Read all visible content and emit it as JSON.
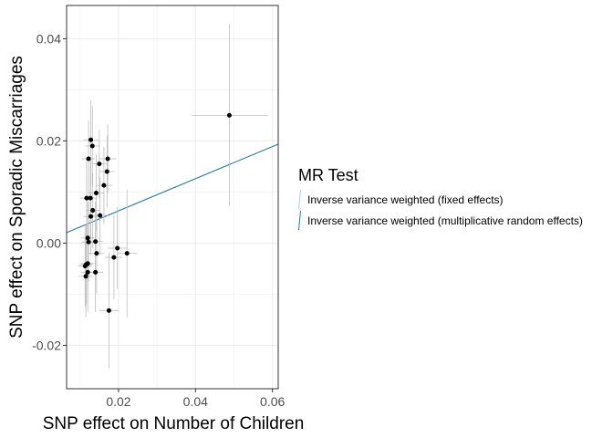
{
  "chart_data": {
    "type": "scatter",
    "title": "",
    "xlabel": "SNP effect on Number of Children",
    "ylabel": "SNP effect on Sporadic Miscarriages",
    "xlim": [
      0.0065,
      0.0615
    ],
    "ylim": [
      -0.0285,
      0.0465
    ],
    "x_ticks": [
      0.02,
      0.04,
      0.06
    ],
    "y_ticks": [
      -0.02,
      0.0,
      0.02,
      0.04
    ],
    "x_tick_labels": [
      "0.02",
      "0.04",
      "0.06"
    ],
    "y_tick_labels": [
      "-0.02",
      "0.00",
      "0.02",
      "0.04"
    ],
    "grid": true,
    "legend_position": "right",
    "legend": {
      "title": "MR Test",
      "entries": [
        {
          "label": "Inverse variance weighted (fixed effects)",
          "color": "#a6cee3"
        },
        {
          "label": "Inverse variance weighted (multiplicative random effects)",
          "color": "#1f78b4"
        }
      ]
    },
    "lines": [
      {
        "name": "Inverse variance weighted (fixed effects)",
        "intercept": 0,
        "slope": 0.315,
        "color": "#a6cee3"
      },
      {
        "name": "Inverse variance weighted (multiplicative random effects)",
        "intercept": 0,
        "slope": 0.315,
        "color": "#1f78b4"
      }
    ],
    "points": [
      {
        "x": 0.0488,
        "y": 0.025,
        "x_lo": 0.039,
        "x_hi": 0.059,
        "y_lo": 0.0072,
        "y_hi": 0.0428
      },
      {
        "x": 0.0128,
        "y": 0.0202,
        "x_lo": 0.0108,
        "x_hi": 0.0148,
        "y_lo": 0.0125,
        "y_hi": 0.028
      },
      {
        "x": 0.0132,
        "y": 0.019,
        "x_lo": 0.0112,
        "x_hi": 0.0152,
        "y_lo": 0.0112,
        "y_hi": 0.0268
      },
      {
        "x": 0.0122,
        "y": 0.0165,
        "x_lo": 0.0105,
        "x_hi": 0.0139,
        "y_lo": 0.009,
        "y_hi": 0.024
      },
      {
        "x": 0.0172,
        "y": 0.0165,
        "x_lo": 0.015,
        "x_hi": 0.0194,
        "y_lo": 0.0098,
        "y_hi": 0.0232
      },
      {
        "x": 0.015,
        "y": 0.0155,
        "x_lo": 0.013,
        "x_hi": 0.017,
        "y_lo": 0.0088,
        "y_hi": 0.0222
      },
      {
        "x": 0.017,
        "y": 0.014,
        "x_lo": 0.015,
        "x_hi": 0.019,
        "y_lo": 0.007,
        "y_hi": 0.021
      },
      {
        "x": 0.0162,
        "y": 0.0113,
        "x_lo": 0.014,
        "x_hi": 0.0184,
        "y_lo": 0.0038,
        "y_hi": 0.0188
      },
      {
        "x": 0.0142,
        "y": 0.0098,
        "x_lo": 0.0122,
        "x_hi": 0.0162,
        "y_lo": 0.0022,
        "y_hi": 0.0174
      },
      {
        "x": 0.0117,
        "y": 0.0088,
        "x_lo": 0.01,
        "x_hi": 0.0134,
        "y_lo": 0.001,
        "y_hi": 0.0166
      },
      {
        "x": 0.0127,
        "y": 0.0088,
        "x_lo": 0.011,
        "x_hi": 0.0144,
        "y_lo": 0.0008,
        "y_hi": 0.0168
      },
      {
        "x": 0.0133,
        "y": 0.0064,
        "x_lo": 0.0115,
        "x_hi": 0.0151,
        "y_lo": -0.001,
        "y_hi": 0.0138
      },
      {
        "x": 0.0128,
        "y": 0.0052,
        "x_lo": 0.011,
        "x_hi": 0.0146,
        "y_lo": -0.0025,
        "y_hi": 0.0129
      },
      {
        "x": 0.0152,
        "y": 0.0054,
        "x_lo": 0.0132,
        "x_hi": 0.0172,
        "y_lo": -0.0022,
        "y_hi": 0.013
      },
      {
        "x": 0.012,
        "y": 0.001,
        "x_lo": 0.0102,
        "x_hi": 0.0138,
        "y_lo": -0.0065,
        "y_hi": 0.0085
      },
      {
        "x": 0.0122,
        "y": 0.0002,
        "x_lo": 0.0104,
        "x_hi": 0.014,
        "y_lo": -0.0075,
        "y_hi": 0.0079
      },
      {
        "x": 0.014,
        "y": 0.0003,
        "x_lo": 0.012,
        "x_hi": 0.016,
        "y_lo": -0.0075,
        "y_hi": 0.0081
      },
      {
        "x": 0.0197,
        "y": -0.001,
        "x_lo": 0.0172,
        "x_hi": 0.0222,
        "y_lo": -0.009,
        "y_hi": 0.007
      },
      {
        "x": 0.0143,
        "y": -0.002,
        "x_lo": 0.0123,
        "x_hi": 0.0163,
        "y_lo": -0.0098,
        "y_hi": 0.0058
      },
      {
        "x": 0.0222,
        "y": -0.002,
        "x_lo": 0.0195,
        "x_hi": 0.0249,
        "y_lo": -0.0145,
        "y_hi": 0.0105
      },
      {
        "x": 0.0188,
        "y": -0.0028,
        "x_lo": 0.0166,
        "x_hi": 0.021,
        "y_lo": -0.011,
        "y_hi": 0.0055
      },
      {
        "x": 0.012,
        "y": -0.004,
        "x_lo": 0.0102,
        "x_hi": 0.0138,
        "y_lo": -0.0118,
        "y_hi": 0.0038
      },
      {
        "x": 0.0116,
        "y": -0.0042,
        "x_lo": 0.0098,
        "x_hi": 0.0134,
        "y_lo": -0.012,
        "y_hi": 0.0036
      },
      {
        "x": 0.0113,
        "y": -0.0045,
        "x_lo": 0.0095,
        "x_hi": 0.0131,
        "y_lo": -0.0125,
        "y_hi": 0.0035
      },
      {
        "x": 0.014,
        "y": -0.0057,
        "x_lo": 0.012,
        "x_hi": 0.016,
        "y_lo": -0.0135,
        "y_hi": 0.002
      },
      {
        "x": 0.012,
        "y": -0.0057,
        "x_lo": 0.0102,
        "x_hi": 0.0138,
        "y_lo": -0.0135,
        "y_hi": 0.0021
      },
      {
        "x": 0.0115,
        "y": -0.0065,
        "x_lo": 0.0097,
        "x_hi": 0.0133,
        "y_lo": -0.0145,
        "y_hi": 0.0015
      },
      {
        "x": 0.0175,
        "y": -0.0132,
        "x_lo": 0.015,
        "x_hi": 0.02,
        "y_lo": -0.0245,
        "y_hi": -0.0018
      }
    ]
  }
}
